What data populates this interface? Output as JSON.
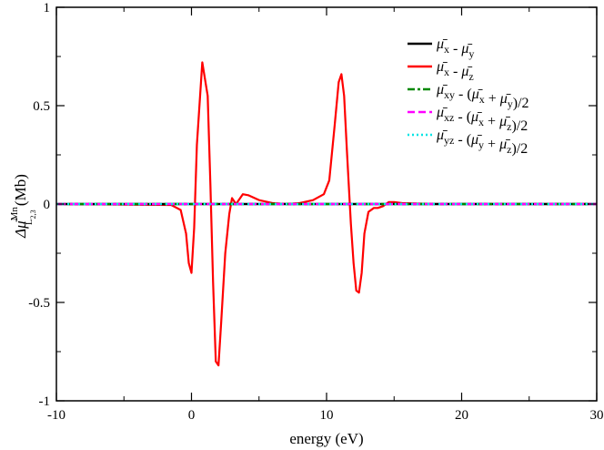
{
  "chart_data": {
    "type": "line",
    "xlabel": "energy (eV)",
    "ylabel": "Δμ̄",
    "ylabel_sup": "Mn",
    "ylabel_sub": "L",
    "ylabel_subsub": "2,3",
    "ylabel_unit": "(Mb)",
    "xlim": [
      -10,
      30
    ],
    "ylim": [
      -1,
      1
    ],
    "xticks": [
      -10,
      0,
      10,
      20,
      30
    ],
    "xtick_labels": [
      "-10",
      "0",
      "10",
      "20",
      "30"
    ],
    "yticks": [
      -1,
      -0.5,
      0,
      0.5,
      1
    ],
    "ytick_labels": [
      "-1",
      "-0.5",
      "0",
      "0.5",
      "1"
    ],
    "grid": false,
    "legend_position": "top-right",
    "series": [
      {
        "legend": [
          {
            "t": "μ̄",
            "s": "x"
          },
          {
            "t": " - "
          },
          {
            "t": "μ̄",
            "s": "y"
          }
        ],
        "color": "#000000",
        "dash": "solid",
        "x": [
          -10,
          30
        ],
        "y": [
          0,
          0
        ]
      },
      {
        "legend": [
          {
            "t": "μ̄",
            "s": "x"
          },
          {
            "t": " - "
          },
          {
            "t": "μ̄",
            "s": "z"
          }
        ],
        "color": "#ff0000",
        "dash": "solid",
        "x": [
          -10,
          -1.5,
          -0.8,
          -0.4,
          -0.2,
          0,
          0.2,
          0.4,
          0.8,
          1.2,
          1.4,
          1.6,
          1.8,
          2.0,
          2.2,
          2.5,
          2.8,
          3.0,
          3.3,
          3.8,
          4.2,
          5.0,
          6.0,
          7.0,
          8.0,
          9.0,
          9.8,
          10.2,
          10.6,
          10.9,
          11.1,
          11.3,
          11.5,
          11.8,
          12.0,
          12.2,
          12.4,
          12.6,
          12.8,
          13.1,
          13.5,
          13.8,
          14.2,
          14.6,
          15.0,
          15.6,
          16.5,
          18.0,
          20.0,
          25.0,
          30.0
        ],
        "y": [
          0,
          -0.005,
          -0.03,
          -0.15,
          -0.3,
          -0.35,
          -0.12,
          0.3,
          0.72,
          0.55,
          0.1,
          -0.4,
          -0.8,
          -0.82,
          -0.6,
          -0.25,
          -0.05,
          0.03,
          0.0,
          0.05,
          0.045,
          0.02,
          0.005,
          0.0,
          0.005,
          0.02,
          0.05,
          0.12,
          0.4,
          0.62,
          0.66,
          0.55,
          0.28,
          -0.1,
          -0.3,
          -0.44,
          -0.45,
          -0.35,
          -0.15,
          -0.04,
          -0.02,
          -0.02,
          -0.01,
          0.01,
          0.01,
          0.005,
          0.003,
          0.0,
          0.0,
          0.0,
          0.0
        ]
      },
      {
        "legend": [
          {
            "t": "μ̄",
            "s": "xy"
          },
          {
            "t": " - ("
          },
          {
            "t": "μ̄",
            "s": "x"
          },
          {
            "t": " + "
          },
          {
            "t": "μ̄",
            "s": "y"
          },
          {
            "t": ")/2"
          }
        ],
        "color": "#008800",
        "dash": "10 4 3 4",
        "x": [
          -10,
          30
        ],
        "y": [
          0,
          0
        ]
      },
      {
        "legend": [
          {
            "t": "μ̄",
            "s": "xz"
          },
          {
            "t": " - ("
          },
          {
            "t": "μ̄",
            "s": "x"
          },
          {
            "t": " + "
          },
          {
            "t": "μ̄",
            "s": "z"
          },
          {
            "t": ")/2"
          }
        ],
        "color": "#ff00ff",
        "dash": "10 5",
        "x": [
          -10,
          30
        ],
        "y": [
          0,
          0
        ]
      },
      {
        "legend": [
          {
            "t": "μ̄",
            "s": "yz"
          },
          {
            "t": " - ("
          },
          {
            "t": "μ̄",
            "s": "y"
          },
          {
            "t": " + "
          },
          {
            "t": "μ̄",
            "s": "z"
          },
          {
            "t": ")/2"
          }
        ],
        "color": "#00e5e5",
        "dash": "2 4",
        "x": [
          -10,
          30
        ],
        "y": [
          0,
          0
        ]
      }
    ]
  }
}
